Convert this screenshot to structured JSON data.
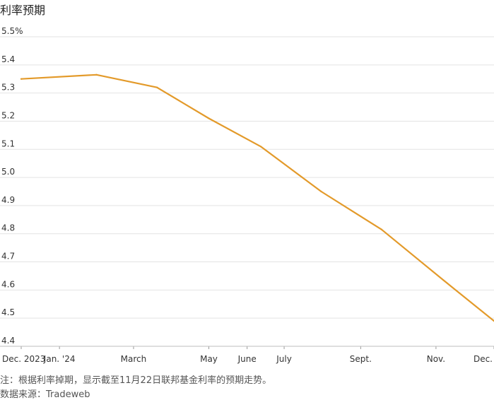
{
  "chart_data": {
    "type": "line",
    "title": "利率预期",
    "xlabel": "",
    "ylabel": "",
    "y_unit_suffix": "%",
    "ylim": [
      4.4,
      5.5
    ],
    "yticks": [
      5.5,
      5.4,
      5.3,
      5.2,
      5.1,
      5.0,
      4.9,
      4.8,
      4.7,
      4.6,
      4.5,
      4.4
    ],
    "xlim": [
      "2023-12-01",
      "2024-12-18"
    ],
    "xticks": [
      {
        "date": "2023-12-01",
        "label": "Dec. 2023"
      },
      {
        "date": "2024-01-01",
        "label": "Jan. '24"
      },
      {
        "date": "2024-03-01",
        "label": "March"
      },
      {
        "date": "2024-05-01",
        "label": "May"
      },
      {
        "date": "2024-06-01",
        "label": "June"
      },
      {
        "date": "2024-07-01",
        "label": "July"
      },
      {
        "date": "2024-09-01",
        "label": "Sept."
      },
      {
        "date": "2024-11-01",
        "label": "Nov."
      },
      {
        "date": "2024-12-18",
        "label": "Dec."
      }
    ],
    "grid": true,
    "legend": "none",
    "series": [
      {
        "color": "#e39a2a",
        "points": [
          {
            "x": "2023-12-01",
            "y": 5.35
          },
          {
            "x": "2024-01-31",
            "y": 5.365
          },
          {
            "x": "2024-03-20",
            "y": 5.32
          },
          {
            "x": "2024-05-01",
            "y": 5.21
          },
          {
            "x": "2024-06-12",
            "y": 5.11
          },
          {
            "x": "2024-07-31",
            "y": 4.95
          },
          {
            "x": "2024-09-18",
            "y": 4.815
          },
          {
            "x": "2024-11-07",
            "y": 4.635
          },
          {
            "x": "2024-12-18",
            "y": 4.49
          }
        ]
      }
    ]
  },
  "footnote": "注：根据利率掉期，显示截至11月22日联邦基金利率的预期走势。",
  "source": "数据来源：Tradeweb"
}
